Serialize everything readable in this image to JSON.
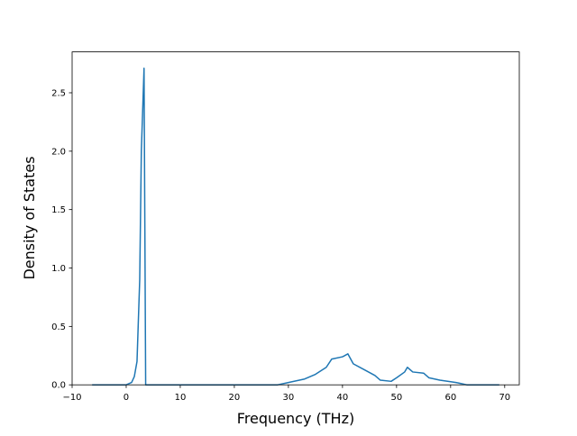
{
  "chart_data": {
    "type": "line",
    "x_label": "Frequency (THz)",
    "y_label": "Density of States",
    "x": [
      -6.3,
      0,
      1,
      1.5,
      2,
      2.5,
      2.8,
      3.3,
      3.6,
      10,
      28,
      30,
      33,
      35,
      37,
      38,
      40,
      41,
      42,
      44,
      46,
      47,
      49,
      50,
      51.5,
      52,
      53,
      55,
      56,
      58,
      61,
      63,
      69
    ],
    "series": [
      {
        "color": "#1f77b4",
        "values": [
          0,
          0,
          0.02,
          0.07,
          0.2,
          0.9,
          2.0,
          2.71,
          0,
          0,
          0,
          0.02,
          0.05,
          0.09,
          0.15,
          0.22,
          0.24,
          0.265,
          0.18,
          0.13,
          0.08,
          0.04,
          0.03,
          0.06,
          0.11,
          0.15,
          0.11,
          0.1,
          0.06,
          0.04,
          0.02,
          0,
          0
        ]
      }
    ],
    "xlim": [
      -10,
      72.7
    ],
    "ylim": [
      0,
      2.85
    ],
    "xticks": [
      {
        "value": -10,
        "label": "−10"
      },
      0,
      10,
      20,
      30,
      40,
      50,
      60,
      70
    ],
    "yticks": [
      {
        "value": 0,
        "label": "0.0"
      },
      {
        "value": 0.5,
        "label": "0.5"
      },
      {
        "value": 1,
        "label": "1.0"
      },
      {
        "value": 1.5,
        "label": "1.5"
      },
      {
        "value": 2,
        "label": "2.0"
      },
      {
        "value": 2.5,
        "label": "2.5"
      }
    ],
    "grid": false
  }
}
